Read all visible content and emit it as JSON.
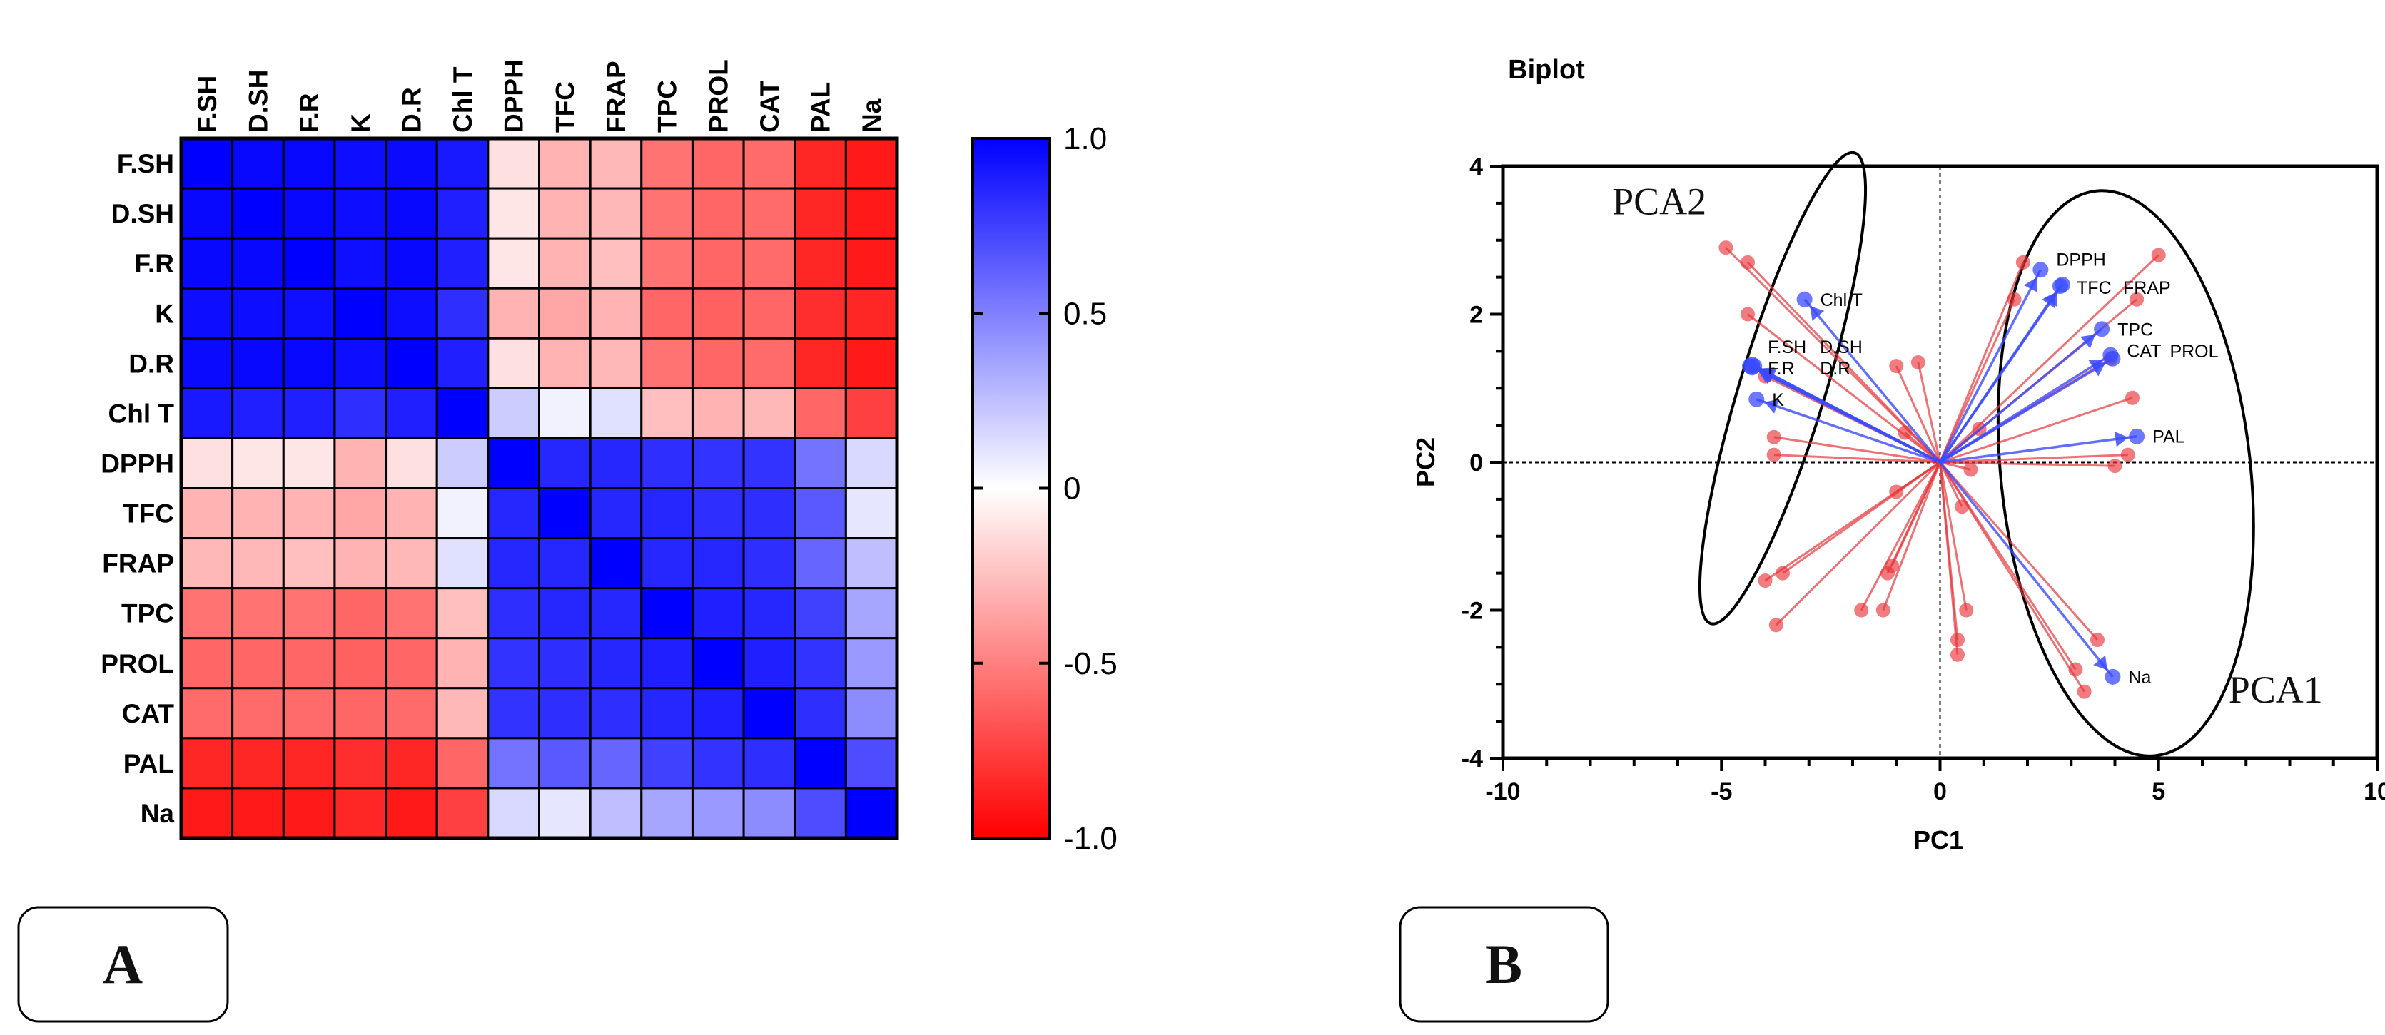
{
  "chart_data": [
    {
      "type": "heatmap",
      "panel_label": "A",
      "variables": [
        "F.SH",
        "D.SH",
        "F.R",
        "K",
        "D.R",
        "Chl T",
        "DPPH",
        "TFC",
        "FRAP",
        "TPC",
        "PROL",
        "CAT",
        "PAL",
        "Na"
      ],
      "matrix": [
        [
          1,
          0.97,
          0.97,
          0.95,
          0.96,
          0.9,
          -0.12,
          -0.3,
          -0.28,
          -0.55,
          -0.6,
          -0.58,
          -0.85,
          -0.9
        ],
        [
          0.97,
          1,
          0.97,
          0.95,
          0.97,
          0.88,
          -0.1,
          -0.3,
          -0.28,
          -0.55,
          -0.6,
          -0.58,
          -0.85,
          -0.9
        ],
        [
          0.97,
          0.97,
          1,
          0.94,
          0.97,
          0.88,
          -0.1,
          -0.3,
          -0.25,
          -0.55,
          -0.6,
          -0.58,
          -0.85,
          -0.9
        ],
        [
          0.95,
          0.95,
          0.94,
          1,
          0.95,
          0.82,
          -0.3,
          -0.35,
          -0.3,
          -0.6,
          -0.62,
          -0.6,
          -0.82,
          -0.85
        ],
        [
          0.96,
          0.97,
          0.97,
          0.95,
          1,
          0.88,
          -0.12,
          -0.3,
          -0.28,
          -0.55,
          -0.6,
          -0.58,
          -0.85,
          -0.9
        ],
        [
          0.9,
          0.88,
          0.88,
          0.82,
          0.88,
          1,
          0.2,
          0.05,
          0.12,
          -0.25,
          -0.3,
          -0.28,
          -0.6,
          -0.75
        ],
        [
          -0.12,
          -0.1,
          -0.1,
          -0.3,
          -0.12,
          0.2,
          1,
          0.85,
          0.85,
          0.82,
          0.8,
          0.8,
          0.55,
          0.15
        ],
        [
          -0.3,
          -0.3,
          -0.3,
          -0.35,
          -0.3,
          0.05,
          0.85,
          1,
          0.85,
          0.85,
          0.82,
          0.82,
          0.65,
          0.1
        ],
        [
          -0.28,
          -0.28,
          -0.25,
          -0.3,
          -0.28,
          0.12,
          0.85,
          0.85,
          1,
          0.85,
          0.85,
          0.82,
          0.6,
          0.25
        ],
        [
          -0.55,
          -0.55,
          -0.55,
          -0.6,
          -0.55,
          -0.25,
          0.82,
          0.85,
          0.85,
          1,
          0.88,
          0.85,
          0.75,
          0.35
        ],
        [
          -0.6,
          -0.6,
          -0.6,
          -0.62,
          -0.6,
          -0.3,
          0.8,
          0.82,
          0.85,
          0.88,
          1,
          0.88,
          0.8,
          0.4
        ],
        [
          -0.58,
          -0.58,
          -0.58,
          -0.6,
          -0.58,
          -0.28,
          0.8,
          0.82,
          0.82,
          0.85,
          0.88,
          1,
          0.82,
          0.45
        ],
        [
          -0.85,
          -0.85,
          -0.85,
          -0.82,
          -0.85,
          -0.6,
          0.55,
          0.65,
          0.6,
          0.75,
          0.8,
          0.82,
          1,
          0.7
        ],
        [
          -0.9,
          -0.9,
          -0.9,
          -0.85,
          -0.9,
          -0.75,
          0.15,
          0.1,
          0.25,
          0.35,
          0.4,
          0.45,
          0.7,
          1
        ]
      ],
      "colorbar": {
        "range": [
          -1,
          1
        ],
        "ticks": [
          1.0,
          0.5,
          0,
          -0.5,
          -1.0
        ],
        "tick_labels": [
          "1.0",
          "0.5",
          "0",
          "-0.5",
          "-1.0"
        ],
        "colors": {
          "negative": "#ff0000",
          "zero": "#ffffff",
          "positive": "#0000ff"
        }
      }
    },
    {
      "type": "scatter",
      "panel_label": "B",
      "title": "Biplot",
      "xlabel": "PC1",
      "ylabel": "PC2",
      "xlim": [
        -10,
        10
      ],
      "ylim": [
        -4,
        4
      ],
      "xticks": [
        -10,
        -5,
        0,
        5,
        10
      ],
      "xtick_labels": [
        "-10",
        "-5",
        "0",
        "5",
        "10"
      ],
      "yticks": [
        4,
        2,
        0,
        -2,
        -4
      ],
      "ytick_labels": [
        "4",
        "2",
        "0",
        "-2",
        "-4"
      ],
      "ellipse_labels": [
        "PCA2",
        "PCA1"
      ],
      "loadings": [
        {
          "name": "Chl T",
          "x": -3.1,
          "y": 2.2
        },
        {
          "name": "F.SH",
          "x": -4.35,
          "y": 1.3
        },
        {
          "name": "D.SH",
          "x": -4.3,
          "y": 1.32
        },
        {
          "name": "F.R",
          "x": -4.3,
          "y": 1.28
        },
        {
          "name": "D.R",
          "x": -4.25,
          "y": 1.3
        },
        {
          "name": "K",
          "x": -4.2,
          "y": 0.85
        },
        {
          "name": "DPPH",
          "x": 2.3,
          "y": 2.6
        },
        {
          "name": "TFC",
          "x": 2.75,
          "y": 2.38
        },
        {
          "name": "FRAP",
          "x": 2.8,
          "y": 2.4
        },
        {
          "name": "TPC",
          "x": 3.7,
          "y": 1.8
        },
        {
          "name": "CAT",
          "x": 3.9,
          "y": 1.45
        },
        {
          "name": "PROL",
          "x": 3.95,
          "y": 1.4
        },
        {
          "name": "PAL",
          "x": 4.5,
          "y": 0.35
        },
        {
          "name": "Na",
          "x": 3.95,
          "y": -2.9
        }
      ],
      "scores": [
        [
          -4.9,
          2.9
        ],
        [
          -4.4,
          2.7
        ],
        [
          -4.4,
          2.0
        ],
        [
          -4.0,
          1.16
        ],
        [
          -3.8,
          0.34
        ],
        [
          -3.8,
          0.1
        ],
        [
          -1.0,
          1.3
        ],
        [
          -0.5,
          1.35
        ],
        [
          -0.8,
          0.4
        ],
        [
          -1.0,
          -0.4
        ],
        [
          0.7,
          -0.1
        ],
        [
          0.5,
          -0.6
        ],
        [
          1.9,
          2.7
        ],
        [
          1.7,
          2.2
        ],
        [
          5.0,
          2.8
        ],
        [
          4.5,
          2.2
        ],
        [
          3.9,
          1.4
        ],
        [
          4.4,
          0.87
        ],
        [
          4.3,
          0.1
        ],
        [
          4.0,
          -0.05
        ],
        [
          0.9,
          0.45
        ],
        [
          -1.1,
          -1.4
        ],
        [
          -1.2,
          -1.5
        ],
        [
          -3.6,
          -1.5
        ],
        [
          -4.0,
          -1.6
        ],
        [
          -3.75,
          -2.2
        ],
        [
          -1.8,
          -2.0
        ],
        [
          -1.3,
          -2.0
        ],
        [
          0.6,
          -2.0
        ],
        [
          0.4,
          -2.4
        ],
        [
          0.4,
          -2.6
        ],
        [
          3.6,
          -2.4
        ],
        [
          3.1,
          -2.8
        ],
        [
          3.3,
          -3.1
        ]
      ],
      "colors": {
        "loadings": "#3b4bff",
        "scores": "#e8363b"
      }
    }
  ]
}
